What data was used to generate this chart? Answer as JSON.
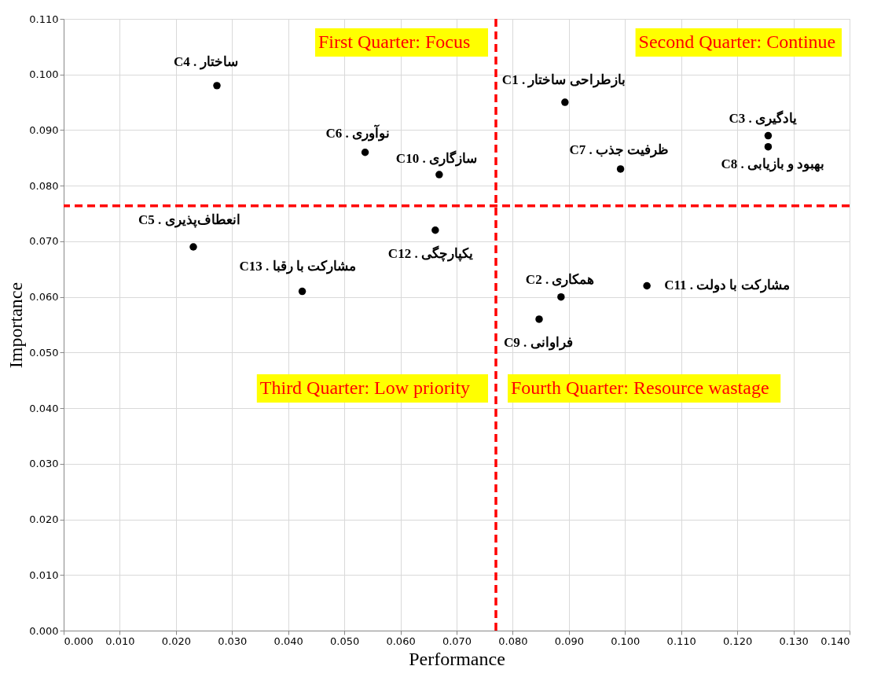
{
  "chart_data": {
    "type": "scatter",
    "xlabel": "Performance",
    "ylabel": "Importance",
    "x": [
      0.0893,
      0.0886,
      0.1255,
      0.0273,
      0.0231,
      0.0537,
      0.0992,
      0.1255,
      0.0847,
      0.0669,
      0.1039,
      0.0662,
      0.0425
    ],
    "series": [
      {
        "color": "#000000",
        "values": [
          0.095,
          0.06,
          0.089,
          0.098,
          0.069,
          0.086,
          0.083,
          0.087,
          0.056,
          0.082,
          0.062,
          0.072,
          0.061
        ],
        "value_labels": [
          "C1 . بازطراحی ساختار",
          "C2 . همکاری",
          "C3 . یادگیری",
          "C4 . ساختار",
          "C5 . انعطاف‌پذیری",
          "C6 . نوآوری",
          "C7 . ظرفیت جذب",
          "C8 . بهبود و بازیابی",
          "C9 . فراوانی",
          "C10 . سازگاری",
          "C11 . مشارکت با دولت",
          "C12 . یکپارچگی",
          "C13 . مشارکت با رقبا"
        ]
      }
    ],
    "xlim": [
      0,
      0.14
    ],
    "xticks": [
      {
        "value": 0,
        "label": "0.000"
      },
      {
        "value": 0.01,
        "label": "0.010"
      },
      {
        "value": 0.02,
        "label": "0.020"
      },
      {
        "value": 0.03,
        "label": "0.030"
      },
      {
        "value": 0.04,
        "label": "0.040"
      },
      {
        "value": 0.05,
        "label": "0.050"
      },
      {
        "value": 0.06,
        "label": "0.060"
      },
      {
        "value": 0.07,
        "label": "0.070"
      },
      {
        "value": 0.08,
        "label": "0.080"
      },
      {
        "value": 0.09,
        "label": "0.090"
      },
      {
        "value": 0.1,
        "label": "0.100"
      },
      {
        "value": 0.11,
        "label": "0.110"
      },
      {
        "value": 0.12,
        "label": "0.120"
      },
      {
        "value": 0.13,
        "label": "0.130"
      },
      {
        "value": 0.14,
        "label": "0.140"
      }
    ],
    "ylim": [
      0,
      0.11
    ],
    "yticks": [
      {
        "value": 0,
        "label": "0.000"
      },
      {
        "value": 0.01,
        "label": "0.010"
      },
      {
        "value": 0.02,
        "label": "0.020"
      },
      {
        "value": 0.03,
        "label": "0.030"
      },
      {
        "value": 0.04,
        "label": "0.040"
      },
      {
        "value": 0.05,
        "label": "0.050"
      },
      {
        "value": 0.06,
        "label": "0.060"
      },
      {
        "value": 0.07,
        "label": "0.070"
      },
      {
        "value": 0.08,
        "label": "0.080"
      },
      {
        "value": 0.09,
        "label": "0.090"
      },
      {
        "value": 0.1,
        "label": "0.100"
      },
      {
        "value": 0.11,
        "label": "0.110"
      }
    ],
    "ref_lines": [
      {
        "axis": "x",
        "value": 0.077,
        "color": "#ff0000",
        "line_style": "dashed"
      },
      {
        "axis": "y",
        "value": 0.0764,
        "color": "#ff0000",
        "line_style": "dashed"
      }
    ],
    "annotations": [
      "First Quarter: Focus",
      "Second Quarter: Continue",
      "Third Quarter: Low priority",
      "Fourth Quarter: Resource wastage"
    ],
    "grid": true,
    "marker": "circle"
  }
}
